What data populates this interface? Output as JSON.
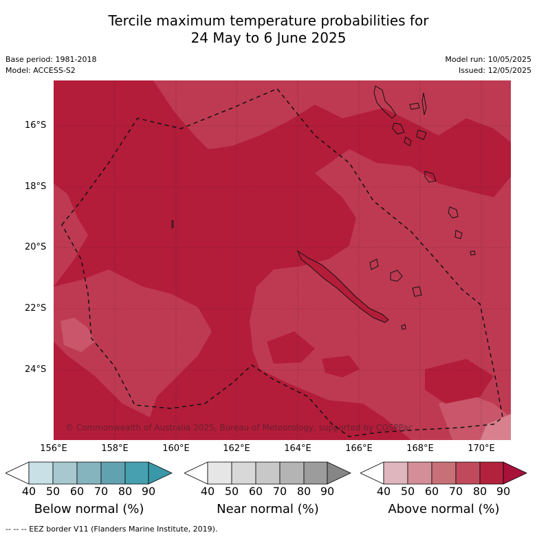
{
  "title_line1": "Tercile maximum temperature probabilities for",
  "title_line2": "24 May to 6 June 2025",
  "base_period": "Base period: 1981-2018",
  "model": "Model: ACCESS-S2",
  "model_run": "Model run: 10/05/2025",
  "issued": "Issued: 12/05/2025",
  "lat_labels": [
    "16°S",
    "18°S",
    "20°S",
    "22°S",
    "24°S"
  ],
  "lon_labels": [
    "156°E",
    "158°E",
    "160°E",
    "162°E",
    "164°E",
    "166°E",
    "168°E",
    "170°E"
  ],
  "credit": "© Commonwealth of Australia 2025, Bureau of Meteorology, supported by COSPPac",
  "colorbars": [
    {
      "label": "Below normal (%)",
      "ticks": [
        "40",
        "50",
        "60",
        "70",
        "80",
        "90"
      ],
      "colors": [
        "#ffffff",
        "#c9e0e6",
        "#a6c8ce",
        "#86b4be",
        "#62a2b0",
        "#46a0b0",
        "#3a98a8"
      ]
    },
    {
      "label": "Near normal (%)",
      "ticks": [
        "40",
        "50",
        "60",
        "70",
        "80",
        "90"
      ],
      "colors": [
        "#ffffff",
        "#e6e6e6",
        "#d8d8d8",
        "#c8c8c8",
        "#b4b4b4",
        "#9c9c9c",
        "#868686"
      ]
    },
    {
      "label": "Above normal (%)",
      "ticks": [
        "40",
        "50",
        "60",
        "70",
        "80",
        "90"
      ],
      "colors": [
        "#ffffff",
        "#e0b6be",
        "#d48e98",
        "#c87078",
        "#c04a5c",
        "#b3223c",
        "#a8123a"
      ]
    }
  ],
  "footer": "--  --  -- EEZ border V11 (Flanders Marine Institute, 2019)."
}
